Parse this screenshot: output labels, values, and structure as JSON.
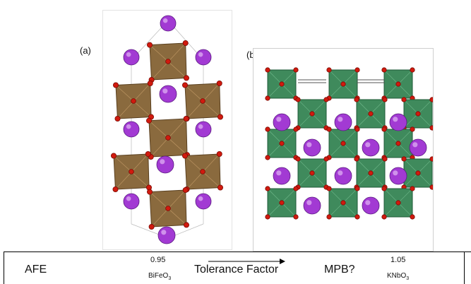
{
  "panels": {
    "a_label": "(a)",
    "b_label": "(b)"
  },
  "scale": {
    "left_label": "AFE",
    "tick_low_value": "0.95",
    "tick_low_compound": "BiFeO",
    "tick_low_sub": "3",
    "middle_label": "Tolerance Factor",
    "right_label": "MPB?",
    "tick_high_value": "1.05",
    "tick_high_compound": "KNbO",
    "tick_high_sub": "3"
  },
  "colors": {
    "octahedron_a": "#8a6a3e",
    "octahedron_b": "#3f8a5c",
    "a_site": "#a23ad3",
    "oxygen": "#d11a0e"
  }
}
